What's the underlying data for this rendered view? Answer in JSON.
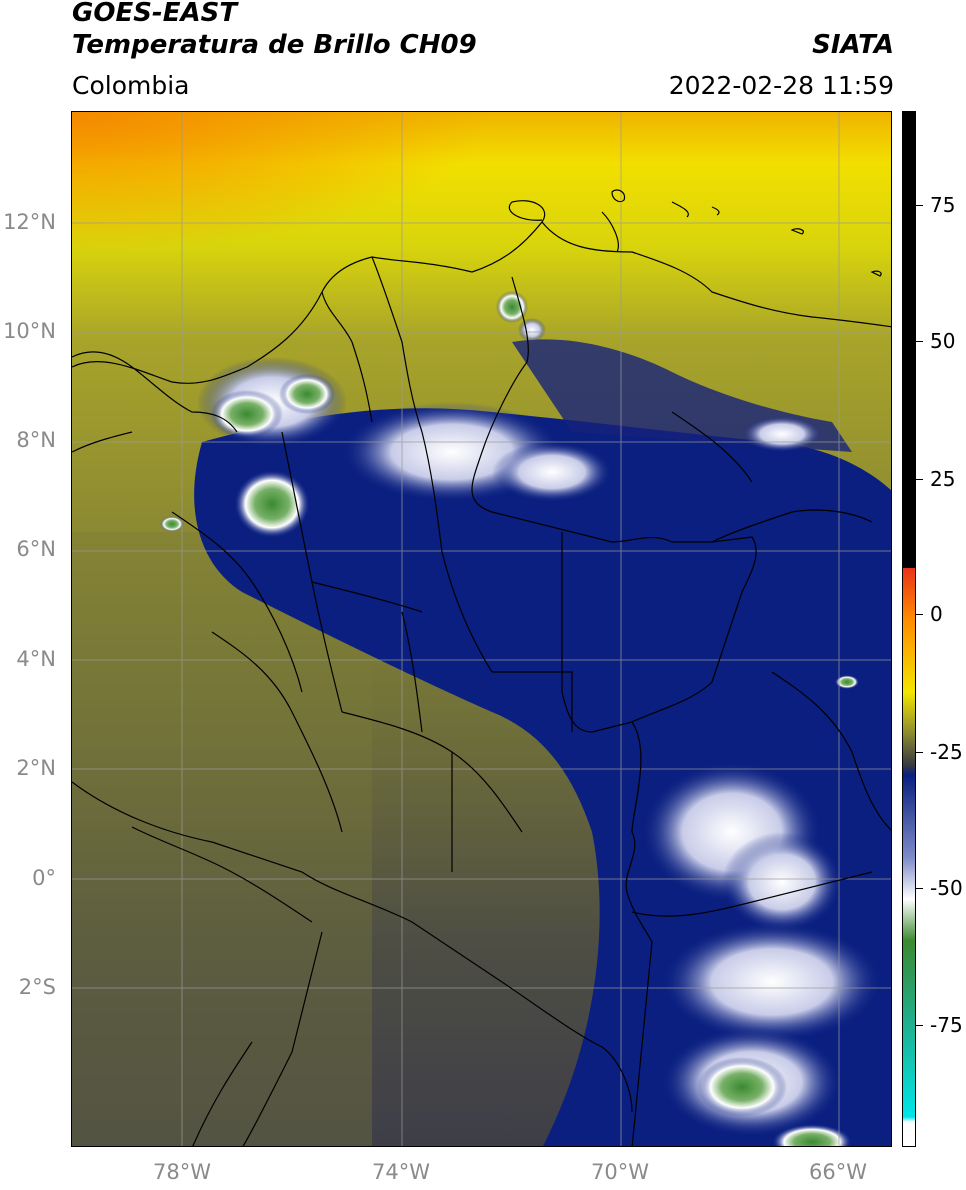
{
  "header": {
    "satellite": "GOES-EAST",
    "product": "Temperatura de Brillo CH09",
    "brand": "SIATA",
    "region": "Colombia",
    "datetime": "2022-02-28 11:59"
  },
  "map": {
    "lat_ticks": [
      "12°N",
      "10°N",
      "8°N",
      "6°N",
      "4°N",
      "2°N",
      "0°",
      "2°S"
    ],
    "lon_ticks": [
      "78°W",
      "74°W",
      "70°W",
      "66°W"
    ],
    "gridline_color": "#9a9a9a",
    "border_color": "#000000"
  },
  "colorbar": {
    "ticks": [
      "75",
      "50",
      "25",
      "0",
      "-25",
      "-50",
      "-75"
    ],
    "colors": {
      "warm_top": "#000000",
      "red": "#e8321a",
      "orange": "#ff8c00",
      "yellow": "#f2e600",
      "olive": "#8a8a30",
      "dark_gray": "#3a3a40",
      "navy": "#0a1f80",
      "white": "#ffffff",
      "green": "#3a8a30",
      "teal": "#20b090",
      "cyan": "#00e5e8"
    }
  }
}
